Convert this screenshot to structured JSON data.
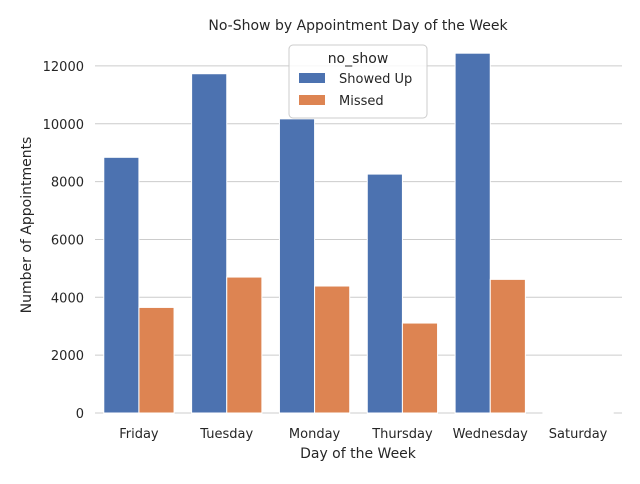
{
  "chart_data": {
    "type": "bar",
    "title": "No-Show by Appointment Day of the Week",
    "xlabel": "Day of the Week",
    "ylabel": "Number of Appointments",
    "categories": [
      "Friday",
      "Tuesday",
      "Monday",
      "Thursday",
      "Wednesday",
      "Saturday"
    ],
    "series": [
      {
        "name": "Showed Up",
        "color": "#4c72b0",
        "values": [
          8840,
          11730,
          10170,
          8260,
          12440,
          30
        ]
      },
      {
        "name": "Missed",
        "color": "#dd8452",
        "values": [
          3650,
          4700,
          4390,
          3110,
          4620,
          9
        ]
      }
    ],
    "ylim": [
      0,
      13000
    ],
    "yticks": [
      0,
      2000,
      4000,
      6000,
      8000,
      10000,
      12000
    ],
    "grid": true,
    "legend": {
      "title": "no_show",
      "position": "top-center"
    },
    "style": {
      "grid_color": "#cccccc",
      "axis_text_color": "#262626"
    }
  }
}
